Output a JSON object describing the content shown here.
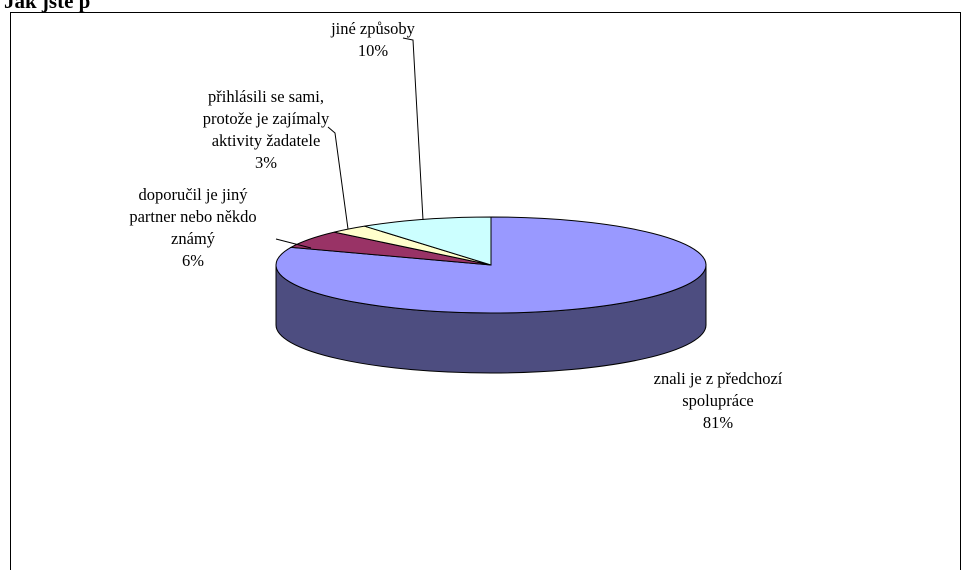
{
  "page": {
    "cut_heading": "Jak jste p"
  },
  "chart_data": {
    "type": "pie",
    "title": "",
    "three_d": true,
    "legend": "none",
    "slices": [
      {
        "label_lines": [
          "znali je z předchozí",
          "spolupráce"
        ],
        "percent_text": "81%",
        "value": 81,
        "color_top": "#9999ff",
        "color_side": "#4d4d80"
      },
      {
        "label_lines": [
          "doporučil je jiný",
          "partner nebo někdo",
          "známý"
        ],
        "percent_text": "6%",
        "value": 6,
        "color_top": "#993366",
        "color_side": "#4d1a33"
      },
      {
        "label_lines": [
          "přihlásili se sami,",
          "protože je zajímaly",
          "aktivity žadatele"
        ],
        "percent_text": "3%",
        "value": 3,
        "color_top": "#ffffcc",
        "color_side": "#808066"
      },
      {
        "label_lines": [
          "jiné způsoby"
        ],
        "percent_text": "10%",
        "value": 10,
        "color_top": "#ccffff",
        "color_side": "#668080"
      }
    ]
  }
}
